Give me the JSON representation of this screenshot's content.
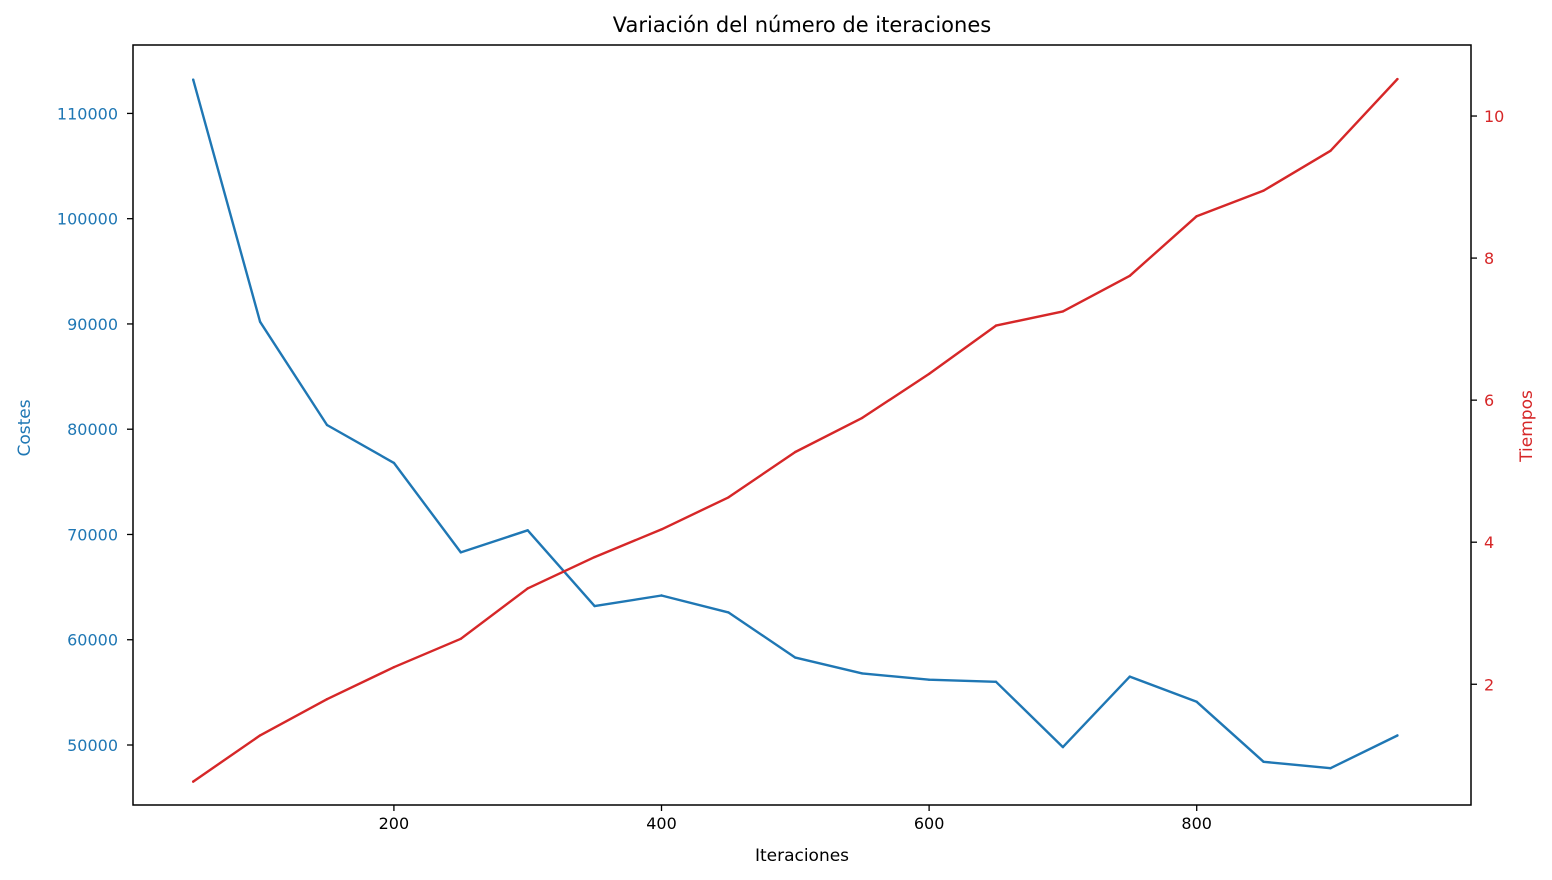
{
  "chart_data": {
    "type": "line",
    "title": "Variación del número de iteraciones",
    "xlabel": "Iteraciones",
    "ylabel_left": "Costes",
    "ylabel_right": "Tiempos",
    "xlim": [
      5,
      1005
    ],
    "ylim_left": [
      44300,
      116500
    ],
    "ylim_right": [
      0.3,
      11.0
    ],
    "x_ticks": [
      200,
      400,
      600,
      800
    ],
    "y_left_ticks": [
      50000,
      60000,
      70000,
      80000,
      90000,
      100000,
      110000
    ],
    "y_right_ticks": [
      2,
      4,
      6,
      8,
      10
    ],
    "grid": false,
    "x": [
      50,
      100,
      150,
      200,
      250,
      300,
      350,
      400,
      450,
      500,
      550,
      600,
      650,
      700,
      750,
      800,
      850,
      900,
      950
    ],
    "series": [
      {
        "axis": "left",
        "color": "#1f77b4",
        "values": [
          113200,
          90200,
          80400,
          76800,
          68300,
          70400,
          63200,
          64200,
          62600,
          58300,
          56800,
          56200,
          56000,
          49800,
          56500,
          54100,
          48400,
          47800,
          50900
        ]
      },
      {
        "axis": "right",
        "color": "#d62728",
        "values": [
          0.63,
          1.28,
          1.79,
          2.24,
          2.64,
          3.35,
          3.79,
          4.18,
          4.63,
          5.27,
          5.75,
          6.37,
          7.05,
          7.25,
          7.75,
          8.59,
          8.95,
          9.51,
          10.52
        ]
      }
    ]
  }
}
